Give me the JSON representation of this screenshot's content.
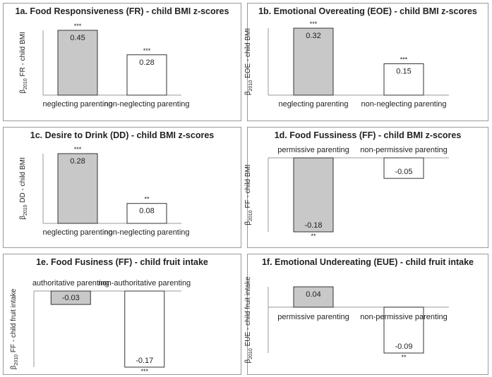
{
  "figure": {
    "colors": {
      "shaded_bar": "#c8c8c8",
      "plain_bar": "#ffffff",
      "bar_stroke": "#333333",
      "axis": "#999999"
    }
  },
  "chart_data": [
    {
      "id": "p1a",
      "type": "bar",
      "title": "1a. Food Responsiveness (FR) - child BMI z-scores",
      "ylabel_sub": "2010",
      "ylabel": "FR - child BMI",
      "categories": [
        "neglecting parenting",
        "non-neglecting parenting"
      ],
      "values": [
        0.45,
        0.28
      ],
      "value_labels": [
        "0.45",
        "0.28"
      ],
      "significance": [
        "***",
        "***"
      ],
      "shaded": [
        true,
        false
      ],
      "ylim": [
        0,
        0.45
      ]
    },
    {
      "id": "p1b",
      "type": "bar",
      "title": "1b. Emotional Overeating  (EOE) - child BMI z-scores",
      "ylabel_sub": "2010",
      "ylabel": "EOE - child BMI",
      "categories": [
        "neglecting parenting",
        "non-neglecting parenting"
      ],
      "values": [
        0.32,
        0.15
      ],
      "value_labels": [
        "0.32",
        "0.15"
      ],
      "significance": [
        "***",
        "***"
      ],
      "shaded": [
        true,
        false
      ],
      "ylim": [
        0,
        0.32
      ]
    },
    {
      "id": "p1c",
      "type": "bar",
      "title": "1c. Desire to Drink (DD) - child BMI z-scores",
      "ylabel_sub": "2010",
      "ylabel": "DD - child BMI",
      "categories": [
        "neglecting parenting",
        "non-neglecting parenting"
      ],
      "values": [
        0.28,
        0.08
      ],
      "value_labels": [
        "0.28",
        "0.08"
      ],
      "significance": [
        "***",
        "**"
      ],
      "shaded": [
        true,
        false
      ],
      "ylim": [
        0,
        0.28
      ]
    },
    {
      "id": "p1d",
      "type": "bar",
      "title": "1d. Food Fussiness (FF) - child BMI z-scores",
      "ylabel_sub": "2010",
      "ylabel": "FF - child BMI",
      "categories": [
        "permissive parenting",
        "non-permissive parenting"
      ],
      "values": [
        -0.18,
        -0.05
      ],
      "value_labels": [
        "-0.18",
        "-0.05"
      ],
      "significance": [
        "**",
        ""
      ],
      "shaded": [
        true,
        false
      ],
      "ylim": [
        -0.18,
        0
      ]
    },
    {
      "id": "p1e",
      "type": "bar",
      "title": "1e. Food Fusiness (FF) - child fruit intake",
      "ylabel_sub": "2010",
      "ylabel": "FF - child fruit intake",
      "categories": [
        "authoritative parenting",
        "non-authoritative parenting"
      ],
      "values": [
        -0.03,
        -0.17
      ],
      "value_labels": [
        "-0.03",
        "-0.17"
      ],
      "significance": [
        "",
        "***"
      ],
      "shaded": [
        true,
        false
      ],
      "ylim": [
        -0.17,
        0
      ]
    },
    {
      "id": "p1f",
      "type": "bar",
      "title": "1f. Emotional Undereating (EUE) - child fruit intake",
      "ylabel_sub": "2010",
      "ylabel": "EUE - child fruit intake",
      "categories": [
        "permissive parenting",
        "non-permissive parenting"
      ],
      "values": [
        0.04,
        -0.09
      ],
      "value_labels": [
        "0.04",
        "-0.09"
      ],
      "significance": [
        "",
        "**"
      ],
      "shaded": [
        true,
        false
      ],
      "ylim": [
        -0.09,
        0.04
      ]
    }
  ]
}
